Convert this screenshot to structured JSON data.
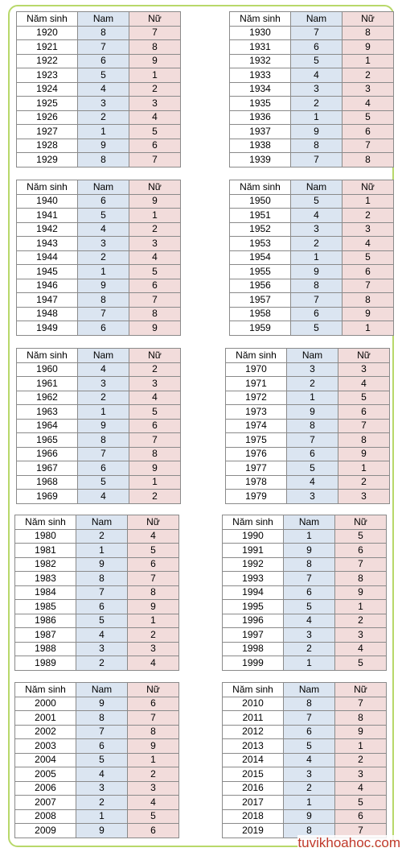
{
  "headers": {
    "year": "Năm sinh",
    "nam": "Nam",
    "nu": "Nữ"
  },
  "tables": [
    {
      "rows": [
        [
          "1920",
          "8",
          "7"
        ],
        [
          "1921",
          "7",
          "8"
        ],
        [
          "1922",
          "6",
          "9"
        ],
        [
          "1923",
          "5",
          "1"
        ],
        [
          "1924",
          "4",
          "2"
        ],
        [
          "1925",
          "3",
          "3"
        ],
        [
          "1926",
          "2",
          "4"
        ],
        [
          "1927",
          "1",
          "5"
        ],
        [
          "1928",
          "9",
          "6"
        ],
        [
          "1929",
          "8",
          "7"
        ]
      ]
    },
    {
      "rows": [
        [
          "1930",
          "7",
          "8"
        ],
        [
          "1931",
          "6",
          "9"
        ],
        [
          "1932",
          "5",
          "1"
        ],
        [
          "1933",
          "4",
          "2"
        ],
        [
          "1934",
          "3",
          "3"
        ],
        [
          "1935",
          "2",
          "4"
        ],
        [
          "1936",
          "1",
          "5"
        ],
        [
          "1937",
          "9",
          "6"
        ],
        [
          "1938",
          "8",
          "7"
        ],
        [
          "1939",
          "7",
          "8"
        ]
      ]
    },
    {
      "rows": [
        [
          "1940",
          "6",
          "9"
        ],
        [
          "1941",
          "5",
          "1"
        ],
        [
          "1942",
          "4",
          "2"
        ],
        [
          "1943",
          "3",
          "3"
        ],
        [
          "1944",
          "2",
          "4"
        ],
        [
          "1945",
          "1",
          "5"
        ],
        [
          "1946",
          "9",
          "6"
        ],
        [
          "1947",
          "8",
          "7"
        ],
        [
          "1948",
          "7",
          "8"
        ],
        [
          "1949",
          "6",
          "9"
        ]
      ]
    },
    {
      "rows": [
        [
          "1950",
          "5",
          "1"
        ],
        [
          "1951",
          "4",
          "2"
        ],
        [
          "1952",
          "3",
          "3"
        ],
        [
          "1953",
          "2",
          "4"
        ],
        [
          "1954",
          "1",
          "5"
        ],
        [
          "1955",
          "9",
          "6"
        ],
        [
          "1956",
          "8",
          "7"
        ],
        [
          "1957",
          "7",
          "8"
        ],
        [
          "1958",
          "6",
          "9"
        ],
        [
          "1959",
          "5",
          "1"
        ]
      ]
    },
    {
      "rows": [
        [
          "1960",
          "4",
          "2"
        ],
        [
          "1961",
          "3",
          "3"
        ],
        [
          "1962",
          "2",
          "4"
        ],
        [
          "1963",
          "1",
          "5"
        ],
        [
          "1964",
          "9",
          "6"
        ],
        [
          "1965",
          "8",
          "7"
        ],
        [
          "1966",
          "7",
          "8"
        ],
        [
          "1967",
          "6",
          "9"
        ],
        [
          "1968",
          "5",
          "1"
        ],
        [
          "1969",
          "4",
          "2"
        ]
      ]
    },
    {
      "rows": [
        [
          "1970",
          "3",
          "3"
        ],
        [
          "1971",
          "2",
          "4"
        ],
        [
          "1972",
          "1",
          "5"
        ],
        [
          "1973",
          "9",
          "6"
        ],
        [
          "1974",
          "8",
          "7"
        ],
        [
          "1975",
          "7",
          "8"
        ],
        [
          "1976",
          "6",
          "9"
        ],
        [
          "1977",
          "5",
          "1"
        ],
        [
          "1978",
          "4",
          "2"
        ],
        [
          "1979",
          "3",
          "3"
        ]
      ]
    },
    {
      "rows": [
        [
          "1980",
          "2",
          "4"
        ],
        [
          "1981",
          "1",
          "5"
        ],
        [
          "1982",
          "9",
          "6"
        ],
        [
          "1983",
          "8",
          "7"
        ],
        [
          "1984",
          "7",
          "8"
        ],
        [
          "1985",
          "6",
          "9"
        ],
        [
          "1986",
          "5",
          "1"
        ],
        [
          "1987",
          "4",
          "2"
        ],
        [
          "1988",
          "3",
          "3"
        ],
        [
          "1989",
          "2",
          "4"
        ]
      ]
    },
    {
      "rows": [
        [
          "1990",
          "1",
          "5"
        ],
        [
          "1991",
          "9",
          "6"
        ],
        [
          "1992",
          "8",
          "7"
        ],
        [
          "1993",
          "7",
          "8"
        ],
        [
          "1994",
          "6",
          "9"
        ],
        [
          "1995",
          "5",
          "1"
        ],
        [
          "1996",
          "4",
          "2"
        ],
        [
          "1997",
          "3",
          "3"
        ],
        [
          "1998",
          "2",
          "4"
        ],
        [
          "1999",
          "1",
          "5"
        ]
      ]
    },
    {
      "rows": [
        [
          "2000",
          "9",
          "6"
        ],
        [
          "2001",
          "8",
          "7"
        ],
        [
          "2002",
          "7",
          "8"
        ],
        [
          "2003",
          "6",
          "9"
        ],
        [
          "2004",
          "5",
          "1"
        ],
        [
          "2005",
          "4",
          "2"
        ],
        [
          "2006",
          "3",
          "3"
        ],
        [
          "2007",
          "2",
          "4"
        ],
        [
          "2008",
          "1",
          "5"
        ],
        [
          "2009",
          "9",
          "6"
        ]
      ]
    },
    {
      "rows": [
        [
          "2010",
          "8",
          "7"
        ],
        [
          "2011",
          "7",
          "8"
        ],
        [
          "2012",
          "6",
          "9"
        ],
        [
          "2013",
          "5",
          "1"
        ],
        [
          "2014",
          "4",
          "2"
        ],
        [
          "2015",
          "3",
          "3"
        ],
        [
          "2016",
          "2",
          "4"
        ],
        [
          "2017",
          "1",
          "5"
        ],
        [
          "2018",
          "9",
          "6"
        ],
        [
          "2019",
          "8",
          "7"
        ]
      ]
    }
  ],
  "watermark": "tuvikhoahoc.com",
  "colors": {
    "frame_border": "#b8d86a",
    "nam_bg": "#dbe5f1",
    "nu_bg": "#f2dcdb",
    "watermark": "#c0392b"
  }
}
